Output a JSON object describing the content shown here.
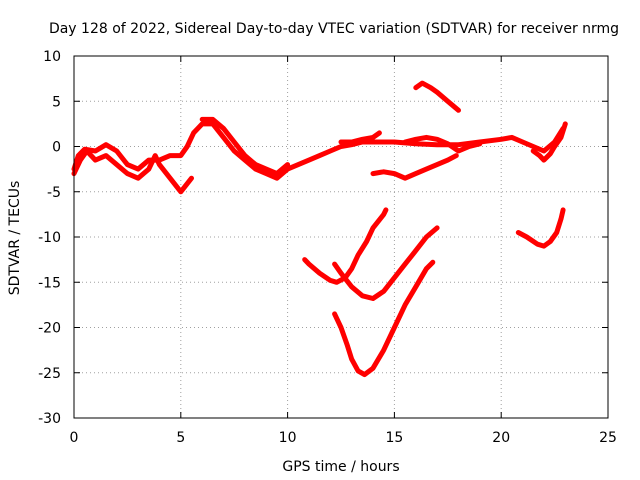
{
  "chart_data": {
    "type": "scatter",
    "title": "Day 128 of 2022, Sidereal Day-to-day VTEC variation (SDTVAR) for receiver nrmg",
    "xlabel": "GPS time / hours",
    "ylabel": "SDTVAR / TECUs",
    "xlim": [
      0,
      25
    ],
    "ylim": [
      -30,
      10
    ],
    "xticks": [
      0,
      5,
      10,
      15,
      20,
      25
    ],
    "yticks": [
      -30,
      -25,
      -20,
      -15,
      -10,
      -5,
      0,
      5,
      10
    ],
    "grid": true,
    "legend": "none",
    "series_color": "#ff0000",
    "series": [
      {
        "points": [
          [
            0,
            -2.5
          ],
          [
            0.2,
            -1.0
          ],
          [
            0.5,
            -0.3
          ],
          [
            1.0,
            -0.5
          ],
          [
            1.5,
            0.2
          ],
          [
            2.0,
            -0.5
          ],
          [
            2.5,
            -2.0
          ],
          [
            3.0,
            -2.5
          ],
          [
            3.5,
            -1.5
          ],
          [
            4.0,
            -1.5
          ],
          [
            4.5,
            -1.0
          ],
          [
            5.0,
            -1.0
          ],
          [
            5.3,
            0.0
          ],
          [
            5.6,
            1.5
          ],
          [
            6.0,
            2.5
          ],
          [
            6.5,
            2.5
          ],
          [
            7.0,
            1.0
          ],
          [
            7.5,
            -0.5
          ],
          [
            8.0,
            -1.5
          ],
          [
            8.5,
            -2.5
          ],
          [
            9.0,
            -3.0
          ],
          [
            9.5,
            -3.5
          ],
          [
            10.0,
            -2.5
          ],
          [
            10.5,
            -2.0
          ],
          [
            11.0,
            -1.5
          ],
          [
            11.5,
            -1.0
          ],
          [
            12.0,
            -0.5
          ],
          [
            12.5,
            0.0
          ],
          [
            13.0,
            0.2
          ],
          [
            13.5,
            0.5
          ],
          [
            14.0,
            0.5
          ],
          [
            15.0,
            0.5
          ],
          [
            16.0,
            0.3
          ],
          [
            17.0,
            0.2
          ],
          [
            18.0,
            0.2
          ],
          [
            19.0,
            0.5
          ],
          [
            20.0,
            0.8
          ],
          [
            20.5,
            1.0
          ],
          [
            21.0,
            0.5
          ],
          [
            21.5,
            0.0
          ],
          [
            22.0,
            -0.5
          ],
          [
            22.5,
            0.5
          ],
          [
            22.9,
            2.0
          ]
        ]
      },
      {
        "points": [
          [
            0,
            -3.0
          ],
          [
            0.3,
            -1.5
          ],
          [
            0.6,
            -0.5
          ],
          [
            1.0,
            -1.5
          ],
          [
            1.5,
            -1.0
          ],
          [
            2.0,
            -2.0
          ],
          [
            2.5,
            -3.0
          ],
          [
            3.0,
            -3.5
          ],
          [
            3.5,
            -2.5
          ],
          [
            3.8,
            -1.0
          ],
          [
            4.0,
            -2.0
          ],
          [
            4.5,
            -3.5
          ],
          [
            5.0,
            -5.0
          ],
          [
            5.5,
            -3.5
          ]
        ]
      },
      {
        "points": [
          [
            6.0,
            3.0
          ],
          [
            6.5,
            3.0
          ],
          [
            7.0,
            2.0
          ],
          [
            7.5,
            0.5
          ],
          [
            8.0,
            -1.0
          ],
          [
            8.5,
            -2.0
          ],
          [
            9.0,
            -2.5
          ],
          [
            9.5,
            -3.0
          ],
          [
            10.0,
            -2.0
          ]
        ]
      },
      {
        "points": [
          [
            15.5,
            0.5
          ],
          [
            16.0,
            0.8
          ],
          [
            16.5,
            1.0
          ],
          [
            17.0,
            0.8
          ],
          [
            17.5,
            0.3
          ],
          [
            18.0,
            -0.5
          ],
          [
            18.5,
            0.0
          ],
          [
            19.0,
            0.3
          ]
        ]
      },
      {
        "points": [
          [
            12.5,
            0.5
          ],
          [
            13.0,
            0.5
          ],
          [
            13.5,
            0.8
          ],
          [
            14.0,
            1.0
          ],
          [
            14.3,
            1.5
          ]
        ]
      },
      {
        "points": [
          [
            16.0,
            6.5
          ],
          [
            16.3,
            7.0
          ],
          [
            16.7,
            6.5
          ],
          [
            17.0,
            6.0
          ],
          [
            17.5,
            5.0
          ],
          [
            18.0,
            4.0
          ]
        ]
      },
      {
        "points": [
          [
            14.0,
            -3.0
          ],
          [
            14.5,
            -2.8
          ],
          [
            15.0,
            -3.0
          ],
          [
            15.5,
            -3.5
          ],
          [
            16.0,
            -3.0
          ],
          [
            16.5,
            -2.5
          ],
          [
            17.0,
            -2.0
          ],
          [
            17.5,
            -1.5
          ],
          [
            17.9,
            -1.0
          ]
        ]
      },
      {
        "points": [
          [
            10.8,
            -12.5
          ],
          [
            11.0,
            -13.0
          ],
          [
            11.5,
            -14.0
          ],
          [
            12.0,
            -14.8
          ],
          [
            12.3,
            -15.0
          ],
          [
            12.7,
            -14.5
          ],
          [
            13.0,
            -13.5
          ],
          [
            13.3,
            -12.0
          ],
          [
            13.7,
            -10.5
          ],
          [
            14.0,
            -9.0
          ],
          [
            14.5,
            -7.5
          ],
          [
            14.6,
            -7.0
          ]
        ]
      },
      {
        "points": [
          [
            12.2,
            -13.0
          ],
          [
            12.5,
            -14.0
          ],
          [
            13.0,
            -15.5
          ],
          [
            13.5,
            -16.5
          ],
          [
            14.0,
            -16.8
          ],
          [
            14.5,
            -16.0
          ],
          [
            15.0,
            -14.5
          ],
          [
            15.5,
            -13.0
          ],
          [
            16.0,
            -11.5
          ],
          [
            16.5,
            -10.0
          ],
          [
            17.0,
            -9.0
          ]
        ]
      },
      {
        "points": [
          [
            12.2,
            -18.5
          ],
          [
            12.5,
            -20.0
          ],
          [
            12.8,
            -22.0
          ],
          [
            13.0,
            -23.5
          ],
          [
            13.3,
            -24.8
          ],
          [
            13.6,
            -25.2
          ],
          [
            14.0,
            -24.5
          ],
          [
            14.5,
            -22.5
          ],
          [
            15.0,
            -20.0
          ],
          [
            15.5,
            -17.5
          ],
          [
            16.0,
            -15.5
          ],
          [
            16.5,
            -13.5
          ],
          [
            16.8,
            -12.8
          ]
        ]
      },
      {
        "points": [
          [
            20.8,
            -9.5
          ],
          [
            21.2,
            -10.0
          ],
          [
            21.7,
            -10.8
          ],
          [
            22.0,
            -11.0
          ],
          [
            22.3,
            -10.5
          ],
          [
            22.6,
            -9.5
          ],
          [
            22.8,
            -8.0
          ],
          [
            22.9,
            -7.0
          ]
        ]
      },
      {
        "points": [
          [
            21.5,
            -0.5
          ],
          [
            21.8,
            -1.0
          ],
          [
            22.0,
            -1.5
          ],
          [
            22.3,
            -0.8
          ],
          [
            22.5,
            0.0
          ],
          [
            22.8,
            1.0
          ],
          [
            23.0,
            2.5
          ]
        ]
      }
    ]
  }
}
